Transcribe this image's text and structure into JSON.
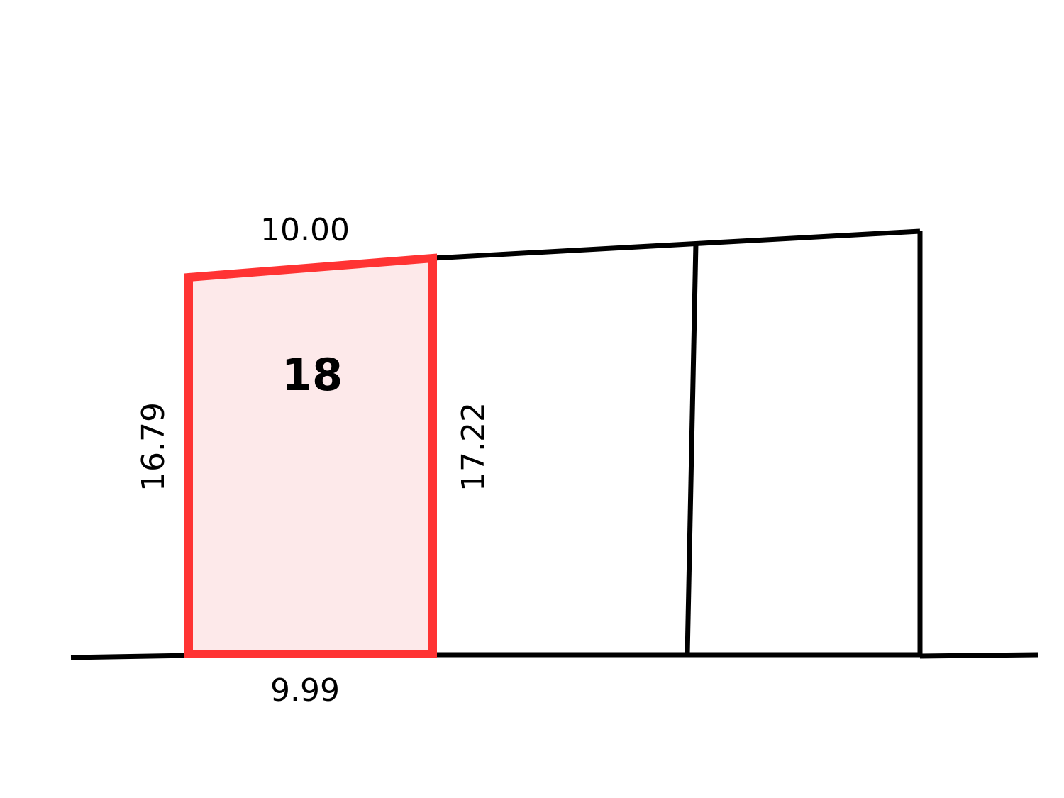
{
  "lot": {
    "number": "18",
    "highlight_stroke": "#ff3333",
    "highlight_fill": "#fde9ea"
  },
  "dimensions": {
    "top": "10.00",
    "left": "16.79",
    "right": "17.22",
    "bottom": "9.99"
  },
  "line_color": "#000000"
}
